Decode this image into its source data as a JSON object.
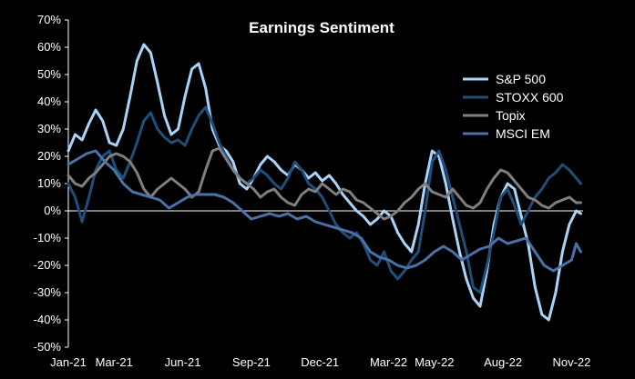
{
  "chart_data": {
    "type": "line",
    "title": "Earnings Sentiment",
    "xlabel": "",
    "ylabel": "",
    "ylim": [
      -50,
      70
    ],
    "yticks": [
      "70%",
      "60%",
      "50%",
      "40%",
      "30%",
      "20%",
      "10%",
      "0%",
      "-10%",
      "-20%",
      "-30%",
      "-40%",
      "-50%"
    ],
    "ytick_values": [
      70,
      60,
      50,
      40,
      30,
      20,
      10,
      0,
      -10,
      -20,
      -30,
      -40,
      -50
    ],
    "xticks": [
      "Jan-21",
      "Mar-21",
      "Jun-21",
      "Sep-21",
      "Dec-21",
      "Mar-22",
      "May-22",
      "Aug-22",
      "Nov-22"
    ],
    "xtick_values": [
      0,
      2,
      5,
      8,
      11,
      14,
      16,
      19,
      22
    ],
    "xlim": [
      0,
      22.5
    ],
    "legend_position": "right",
    "grid": false,
    "background": "#000000",
    "series": [
      {
        "name": "S&P 500",
        "color": "#a9d4f7",
        "points": [
          [
            0,
            22
          ],
          [
            0.3,
            28
          ],
          [
            0.6,
            26
          ],
          [
            0.9,
            32
          ],
          [
            1.2,
            37
          ],
          [
            1.5,
            33
          ],
          [
            1.8,
            25
          ],
          [
            2.1,
            24
          ],
          [
            2.4,
            30
          ],
          [
            2.7,
            42
          ],
          [
            3.0,
            55
          ],
          [
            3.3,
            61
          ],
          [
            3.6,
            58
          ],
          [
            3.9,
            47
          ],
          [
            4.2,
            35
          ],
          [
            4.5,
            28
          ],
          [
            4.8,
            30
          ],
          [
            5.1,
            42
          ],
          [
            5.4,
            52
          ],
          [
            5.7,
            54
          ],
          [
            6.0,
            45
          ],
          [
            6.3,
            30
          ],
          [
            6.6,
            24
          ],
          [
            6.9,
            22
          ],
          [
            7.2,
            18
          ],
          [
            7.5,
            10
          ],
          [
            7.8,
            8
          ],
          [
            8.1,
            12
          ],
          [
            8.4,
            17
          ],
          [
            8.7,
            20
          ],
          [
            9.0,
            18
          ],
          [
            9.3,
            15
          ],
          [
            9.6,
            13
          ],
          [
            9.9,
            17
          ],
          [
            10.2,
            15
          ],
          [
            10.5,
            12
          ],
          [
            10.8,
            14
          ],
          [
            11.1,
            11
          ],
          [
            11.4,
            13
          ],
          [
            11.7,
            10
          ],
          [
            12.0,
            6
          ],
          [
            12.3,
            3
          ],
          [
            12.6,
            0
          ],
          [
            12.9,
            -2
          ],
          [
            13.2,
            -5
          ],
          [
            13.5,
            -3
          ],
          [
            13.8,
            0
          ],
          [
            14.1,
            -2
          ],
          [
            14.4,
            -8
          ],
          [
            14.7,
            -12
          ],
          [
            15.0,
            -15
          ],
          [
            15.3,
            -5
          ],
          [
            15.6,
            10
          ],
          [
            15.9,
            22
          ],
          [
            16.2,
            20
          ],
          [
            16.5,
            10
          ],
          [
            16.8,
            -3
          ],
          [
            17.1,
            -15
          ],
          [
            17.4,
            -25
          ],
          [
            17.7,
            -32
          ],
          [
            18.0,
            -35
          ],
          [
            18.3,
            -22
          ],
          [
            18.6,
            -5
          ],
          [
            18.9,
            5
          ],
          [
            19.2,
            10
          ],
          [
            19.5,
            8
          ],
          [
            19.8,
            -2
          ],
          [
            20.1,
            -12
          ],
          [
            20.4,
            -28
          ],
          [
            20.7,
            -38
          ],
          [
            21.0,
            -40
          ],
          [
            21.3,
            -30
          ],
          [
            21.6,
            -15
          ],
          [
            21.9,
            -5
          ],
          [
            22.2,
            0
          ],
          [
            22.4,
            -1
          ]
        ]
      },
      {
        "name": "STOXX 600",
        "color": "#1f4e79",
        "points": [
          [
            0,
            10
          ],
          [
            0.3,
            5
          ],
          [
            0.6,
            -4
          ],
          [
            0.9,
            5
          ],
          [
            1.2,
            15
          ],
          [
            1.5,
            20
          ],
          [
            1.8,
            22
          ],
          [
            2.1,
            15
          ],
          [
            2.4,
            12
          ],
          [
            2.7,
            18
          ],
          [
            3.0,
            25
          ],
          [
            3.3,
            33
          ],
          [
            3.6,
            36
          ],
          [
            3.9,
            30
          ],
          [
            4.2,
            27
          ],
          [
            4.5,
            25
          ],
          [
            4.8,
            26
          ],
          [
            5.1,
            24
          ],
          [
            5.4,
            30
          ],
          [
            5.7,
            35
          ],
          [
            6.0,
            38
          ],
          [
            6.3,
            32
          ],
          [
            6.6,
            25
          ],
          [
            6.9,
            20
          ],
          [
            7.2,
            15
          ],
          [
            7.5,
            12
          ],
          [
            7.8,
            10
          ],
          [
            8.1,
            12
          ],
          [
            8.4,
            15
          ],
          [
            8.7,
            13
          ],
          [
            9.0,
            10
          ],
          [
            9.3,
            8
          ],
          [
            9.6,
            12
          ],
          [
            9.9,
            18
          ],
          [
            10.2,
            15
          ],
          [
            10.5,
            10
          ],
          [
            10.8,
            8
          ],
          [
            11.1,
            5
          ],
          [
            11.4,
            0
          ],
          [
            11.7,
            -5
          ],
          [
            12.0,
            -8
          ],
          [
            12.3,
            -10
          ],
          [
            12.6,
            -8
          ],
          [
            12.9,
            -12
          ],
          [
            13.2,
            -18
          ],
          [
            13.5,
            -20
          ],
          [
            13.8,
            -15
          ],
          [
            14.1,
            -22
          ],
          [
            14.4,
            -25
          ],
          [
            14.7,
            -22
          ],
          [
            15.0,
            -18
          ],
          [
            15.3,
            -15
          ],
          [
            15.6,
            0
          ],
          [
            15.9,
            18
          ],
          [
            16.2,
            22
          ],
          [
            16.5,
            15
          ],
          [
            16.8,
            5
          ],
          [
            17.1,
            -5
          ],
          [
            17.4,
            -15
          ],
          [
            17.7,
            -28
          ],
          [
            18.0,
            -30
          ],
          [
            18.3,
            -20
          ],
          [
            18.6,
            -8
          ],
          [
            18.9,
            5
          ],
          [
            19.2,
            8
          ],
          [
            19.5,
            2
          ],
          [
            19.8,
            -5
          ],
          [
            20.1,
            0
          ],
          [
            20.4,
            5
          ],
          [
            20.7,
            8
          ],
          [
            21.0,
            12
          ],
          [
            21.3,
            14
          ],
          [
            21.6,
            17
          ],
          [
            21.9,
            15
          ],
          [
            22.2,
            12
          ],
          [
            22.4,
            10
          ]
        ]
      },
      {
        "name": "Topix",
        "color": "#7f7f7f",
        "points": [
          [
            0,
            13
          ],
          [
            0.3,
            10
          ],
          [
            0.6,
            9
          ],
          [
            0.9,
            12
          ],
          [
            1.2,
            14
          ],
          [
            1.5,
            17
          ],
          [
            1.8,
            20
          ],
          [
            2.1,
            21
          ],
          [
            2.4,
            20
          ],
          [
            2.7,
            18
          ],
          [
            3.0,
            14
          ],
          [
            3.3,
            8
          ],
          [
            3.6,
            5
          ],
          [
            3.9,
            8
          ],
          [
            4.2,
            10
          ],
          [
            4.5,
            12
          ],
          [
            4.8,
            10
          ],
          [
            5.1,
            8
          ],
          [
            5.4,
            5
          ],
          [
            5.7,
            7
          ],
          [
            6.0,
            15
          ],
          [
            6.3,
            22
          ],
          [
            6.6,
            23
          ],
          [
            6.9,
            19
          ],
          [
            7.2,
            15
          ],
          [
            7.5,
            12
          ],
          [
            7.8,
            10
          ],
          [
            8.1,
            8
          ],
          [
            8.4,
            5
          ],
          [
            8.7,
            7
          ],
          [
            9.0,
            8
          ],
          [
            9.3,
            5
          ],
          [
            9.6,
            3
          ],
          [
            9.9,
            2
          ],
          [
            10.2,
            6
          ],
          [
            10.5,
            8
          ],
          [
            10.8,
            7
          ],
          [
            11.1,
            10
          ],
          [
            11.4,
            8
          ],
          [
            11.7,
            6
          ],
          [
            12.0,
            8
          ],
          [
            12.3,
            7
          ],
          [
            12.6,
            4
          ],
          [
            12.9,
            3
          ],
          [
            13.2,
            1
          ],
          [
            13.5,
            -1
          ],
          [
            13.8,
            -3
          ],
          [
            14.1,
            -2
          ],
          [
            14.4,
            0
          ],
          [
            14.7,
            3
          ],
          [
            15.0,
            5
          ],
          [
            15.3,
            8
          ],
          [
            15.6,
            10
          ],
          [
            15.9,
            7
          ],
          [
            16.2,
            6
          ],
          [
            16.5,
            5
          ],
          [
            16.8,
            8
          ],
          [
            17.1,
            5
          ],
          [
            17.4,
            2
          ],
          [
            17.7,
            1
          ],
          [
            18.0,
            3
          ],
          [
            18.3,
            8
          ],
          [
            18.6,
            12
          ],
          [
            18.9,
            15
          ],
          [
            19.2,
            14
          ],
          [
            19.5,
            11
          ],
          [
            19.8,
            8
          ],
          [
            20.1,
            5
          ],
          [
            20.4,
            4
          ],
          [
            20.7,
            2
          ],
          [
            21.0,
            1
          ],
          [
            21.3,
            3
          ],
          [
            21.6,
            4
          ],
          [
            21.9,
            5
          ],
          [
            22.2,
            3
          ],
          [
            22.4,
            3
          ]
        ]
      },
      {
        "name": "MSCI EM",
        "color": "#4a72a8",
        "points": [
          [
            0,
            17
          ],
          [
            0.4,
            19
          ],
          [
            0.8,
            21
          ],
          [
            1.2,
            22
          ],
          [
            1.6,
            18
          ],
          [
            2.0,
            15
          ],
          [
            2.4,
            10
          ],
          [
            2.8,
            7
          ],
          [
            3.2,
            6
          ],
          [
            3.6,
            5
          ],
          [
            4.0,
            4
          ],
          [
            4.4,
            1
          ],
          [
            4.8,
            3
          ],
          [
            5.2,
            5
          ],
          [
            5.6,
            6
          ],
          [
            6.0,
            6
          ],
          [
            6.4,
            6
          ],
          [
            6.8,
            5
          ],
          [
            7.2,
            3
          ],
          [
            7.6,
            0
          ],
          [
            8.0,
            -3
          ],
          [
            8.4,
            -2
          ],
          [
            8.8,
            -1
          ],
          [
            9.2,
            -2
          ],
          [
            9.6,
            -1
          ],
          [
            10.0,
            -3
          ],
          [
            10.4,
            -2
          ],
          [
            10.8,
            -4
          ],
          [
            11.2,
            -5
          ],
          [
            11.6,
            -6
          ],
          [
            12.0,
            -7
          ],
          [
            12.4,
            -8
          ],
          [
            12.8,
            -10
          ],
          [
            13.2,
            -15
          ],
          [
            13.6,
            -17
          ],
          [
            14.0,
            -18
          ],
          [
            14.4,
            -20
          ],
          [
            14.8,
            -21
          ],
          [
            15.2,
            -20
          ],
          [
            15.6,
            -18
          ],
          [
            16.0,
            -15
          ],
          [
            16.4,
            -13
          ],
          [
            16.8,
            -15
          ],
          [
            17.2,
            -18
          ],
          [
            17.6,
            -16
          ],
          [
            18.0,
            -14
          ],
          [
            18.4,
            -13
          ],
          [
            18.8,
            -10
          ],
          [
            19.2,
            -12
          ],
          [
            19.6,
            -11
          ],
          [
            20.0,
            -10
          ],
          [
            20.4,
            -15
          ],
          [
            20.8,
            -20
          ],
          [
            21.2,
            -22
          ],
          [
            21.6,
            -20
          ],
          [
            22.0,
            -18
          ],
          [
            22.2,
            -12
          ],
          [
            22.4,
            -15
          ]
        ]
      }
    ]
  }
}
